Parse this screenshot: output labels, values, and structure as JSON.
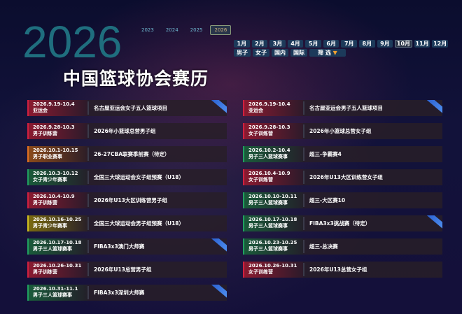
{
  "header": {
    "bg_year": "2026",
    "title": "中国篮球协会赛历",
    "years": [
      "2023",
      "2024",
      "2025",
      "2026"
    ],
    "active_year": "2026"
  },
  "filters": {
    "months": [
      "1月",
      "2月",
      "3月",
      "4月",
      "5月",
      "6月",
      "7月",
      "8月",
      "9月",
      "10月",
      "11月",
      "12月"
    ],
    "active_month": "10月",
    "categories": [
      "男子",
      "女子",
      "国内",
      "国际"
    ],
    "filter_label": "筛 选",
    "filter_icon": "▼"
  },
  "events_left": [
    {
      "date": "2026.9.19-10.4",
      "type": "亚运会",
      "name": "名古屋亚运会女子五人篮球项目",
      "color": "red",
      "ribbon": true
    },
    {
      "date": "2026.9.28-10.3",
      "type": "男子训练营",
      "name": "2026年小篮球总营男子组",
      "color": "red",
      "ribbon": false
    },
    {
      "date": "2026.10.1-10.15",
      "type": "男子职业赛事",
      "name": "26-27CBA联赛季前赛（待定）",
      "color": "orange",
      "ribbon": false
    },
    {
      "date": "2026.10.3-10.12",
      "type": "女子青少年赛事",
      "name": "全国三大球运动会女子组预赛（U18）",
      "color": "green",
      "ribbon": false
    },
    {
      "date": "2026.10.4-10.9",
      "type": "男子训练营",
      "name": "2026年U13大区训练营男子组",
      "color": "red",
      "ribbon": false
    },
    {
      "date": "2026.10.16-10.25",
      "type": "男子青少年赛事",
      "name": "全国三大球运动会男子组预赛（U18）",
      "color": "yellow",
      "ribbon": false
    },
    {
      "date": "2026.10.17-10.18",
      "type": "男子三人篮球赛事",
      "name": "FIBA3x3澳门大师赛",
      "color": "green",
      "ribbon": true
    },
    {
      "date": "2026.10.26-10.31",
      "type": "男子训练营",
      "name": "2026年U13总营男子组",
      "color": "red",
      "ribbon": false
    },
    {
      "date": "2026.10.31-11.1",
      "type": "男子三人篮球赛事",
      "name": "FIBA3x3深圳大师赛",
      "color": "green",
      "ribbon": true
    }
  ],
  "events_right": [
    {
      "date": "2026.9.19-10.4",
      "type": "亚运会",
      "name": "名古屋亚运会男子五人篮球项目",
      "color": "red",
      "ribbon": true
    },
    {
      "date": "2026.9.28-10.3",
      "type": "女子训练营",
      "name": "2026年小篮球总营女子组",
      "color": "red",
      "ribbon": false
    },
    {
      "date": "2026.10.2-10.4",
      "type": "男子三人篮球赛事",
      "name": "超三-争霸赛4",
      "color": "green",
      "ribbon": false
    },
    {
      "date": "2026.10.4-10.9",
      "type": "女子训练营",
      "name": "2026年U13大区训练营女子组",
      "color": "red",
      "ribbon": false
    },
    {
      "date": "2026.10.10-10.11",
      "type": "男子三人篮球赛事",
      "name": "超三-大区赛10",
      "color": "green",
      "ribbon": false
    },
    {
      "date": "2026.10.17-10.18",
      "type": "男子三人篮球赛事",
      "name": "FIBA3x3挑战赛（待定）",
      "color": "green",
      "ribbon": true
    },
    {
      "date": "2026.10.23-10.25",
      "type": "男子三人篮球赛事",
      "name": "超三-总决赛",
      "color": "green",
      "ribbon": false
    },
    {
      "date": "2026.10.26-10.31",
      "type": "女子训练营",
      "name": "2026年U13总营女子组",
      "color": "red",
      "ribbon": false
    }
  ]
}
